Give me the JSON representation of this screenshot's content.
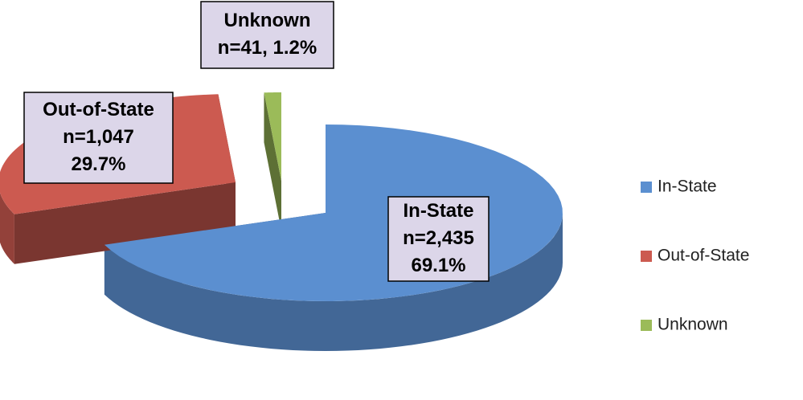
{
  "chart_data": {
    "type": "pie",
    "categories": [
      "In-State",
      "Out-of-State",
      "Unknown"
    ],
    "values": [
      2435,
      1047,
      41
    ],
    "value_labels": [
      [
        "n=2,435",
        "69.1%"
      ],
      [
        "n=1,047",
        "29.7%"
      ],
      [
        "n=41, 1.2%"
      ]
    ],
    "colors": [
      "#5b8fd0",
      "#cc5a50",
      "#9bbb59"
    ],
    "legend": "right"
  }
}
